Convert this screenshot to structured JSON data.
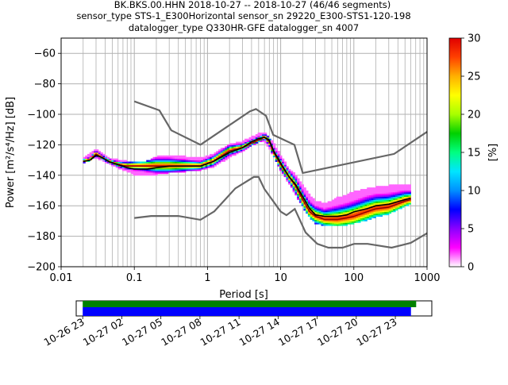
{
  "header": {
    "title_line1": "BK.BKS.00.HHN   2018-10-27 -- 2018-10-27  (46/46 segments)",
    "title_line2": "sensor_type STS-1_E300Horizontal sensor_sn 29220_E300-STS1-120-198",
    "title_line3": "datalogger_type Q330HR-GFE datalogger_sn 4007"
  },
  "colorbar": {
    "label": "[%]",
    "ticks": [
      "0",
      "5",
      "10",
      "15",
      "20",
      "25",
      "30"
    ],
    "range": [
      0,
      30
    ],
    "colormap": [
      "#ffffff",
      "#ff00ff",
      "#8a00ff",
      "#0000ff",
      "#0090ff",
      "#00e5ff",
      "#00ff80",
      "#00d000",
      "#a8ff00",
      "#ffff00",
      "#ffb000",
      "#ff4000",
      "#e00000"
    ]
  },
  "timeline": {
    "tick_labels": [
      "10-26 23",
      "10-27 02",
      "10-27 05",
      "10-27 08",
      "10-27 11",
      "10-27 14",
      "10-27 17",
      "10-27 20",
      "10-27 23"
    ],
    "data_color": "#008000",
    "segment_color": "#0000ff",
    "range_hours": [
      -1.5,
      25.8
    ],
    "data_span_hours": [
      -1,
      24.6
    ],
    "segment_span_hours": [
      -1,
      24.2
    ]
  },
  "chart_data": {
    "type": "heatmap",
    "xlabel": "Period [s]",
    "ylabel": "Power [m²/s⁴/Hz] [dB]",
    "x_scale": "log",
    "xlim": [
      0.01,
      1000
    ],
    "ylim": [
      -200,
      -50
    ],
    "x_tick_labels": [
      "0.01",
      "0.1",
      "1",
      "10",
      "100",
      "1000"
    ],
    "y_ticks": [
      -200,
      -180,
      -160,
      -140,
      -120,
      -100,
      -80,
      -60
    ],
    "grid": true,
    "noise_models": {
      "color": "#666666",
      "nhnm": {
        "x": [
          0.1,
          0.22,
          0.32,
          0.8,
          3.8,
          4.6,
          6.3,
          7.9,
          15.4,
          20,
          354.8,
          1000
        ],
        "y": [
          -91.5,
          -97.4,
          -110.5,
          -120,
          -98,
          -96.5,
          -101,
          -113.5,
          -120,
          -138.5,
          -126,
          -111.5
        ]
      },
      "nlnm": {
        "x": [
          0.1,
          0.17,
          0.4,
          0.8,
          1.24,
          2.4,
          4.3,
          5,
          6,
          10,
          12,
          15.6,
          21.9,
          31.6,
          45,
          70,
          101,
          154,
          328,
          600,
          1000
        ],
        "y": [
          -168,
          -166.7,
          -166.7,
          -169.2,
          -163.7,
          -148.6,
          -141.1,
          -141.1,
          -149,
          -163.8,
          -166.2,
          -162.1,
          -177.5,
          -185,
          -187.5,
          -187.5,
          -185,
          -185,
          -187.5,
          -184.4,
          -178
        ]
      }
    },
    "mean_line": {
      "color": "#000000",
      "x": [
        0.02,
        0.025,
        0.03,
        0.035,
        0.045,
        0.06,
        0.08,
        0.1,
        0.15,
        0.2,
        0.3,
        0.5,
        0.8,
        1.2,
        2,
        3,
        4,
        5,
        6,
        7,
        8,
        10,
        13,
        16,
        20,
        25,
        30,
        40,
        60,
        80,
        100,
        150,
        200,
        300,
        500,
        600
      ],
      "y": [
        -131,
        -130,
        -127,
        -128,
        -131,
        -133,
        -135,
        -136,
        -136,
        -135,
        -134,
        -134,
        -134,
        -131,
        -125,
        -122,
        -118,
        -116,
        -115,
        -117,
        -124,
        -132,
        -141,
        -146,
        -154,
        -162,
        -166,
        -167,
        -167,
        -166,
        -164,
        -162,
        -160,
        -159,
        -156,
        -155
      ]
    },
    "mode_line": {
      "color": "#8b0000",
      "x": [
        0.02,
        0.025,
        0.03,
        0.035,
        0.045,
        0.06,
        0.08,
        0.1,
        0.15,
        0.2,
        0.3,
        0.5,
        0.8,
        1.2,
        2,
        3,
        4,
        5,
        6,
        7,
        8,
        10,
        13,
        16,
        20,
        25,
        30,
        40,
        60,
        80,
        100,
        150,
        200,
        300,
        500,
        600
      ],
      "y": [
        -131,
        -130,
        -126,
        -128,
        -131,
        -133,
        -134,
        -134,
        -134,
        -134,
        -134,
        -134,
        -134,
        -131,
        -124,
        -122,
        -119,
        -117,
        -115,
        -118,
        -125,
        -133,
        -141,
        -147,
        -156,
        -164,
        -167,
        -169,
        -169,
        -168,
        -167,
        -164,
        -162,
        -161,
        -157,
        -156
      ]
    },
    "psd_cloud": {
      "x": [
        0.02,
        0.03,
        0.045,
        0.06,
        0.08,
        0.1,
        0.15,
        0.2,
        0.3,
        0.5,
        0.8,
        1.2,
        2,
        3,
        4,
        5,
        6,
        8,
        10,
        13,
        16,
        20,
        25,
        30,
        40,
        60,
        80,
        100,
        150,
        200,
        300,
        500,
        600
      ],
      "low": [
        -132,
        -128,
        -132,
        -135,
        -137,
        -139,
        -140,
        -139,
        -138,
        -137,
        -136,
        -134,
        -128,
        -124,
        -120,
        -118,
        -117,
        -127,
        -136,
        -145,
        -152,
        -160,
        -167,
        -171,
        -173,
        -173,
        -172,
        -171,
        -169,
        -167,
        -165,
        -160,
        -158
      ],
      "high": [
        -130,
        -124,
        -130,
        -131,
        -132,
        -133,
        -132,
        -129,
        -128,
        -129,
        -130,
        -127,
        -121,
        -119,
        -116,
        -114,
        -113,
        -120,
        -128,
        -137,
        -141,
        -148,
        -154,
        -158,
        -160,
        -156,
        -154,
        -152,
        -150,
        -149,
        -148,
        -147,
        -147
      ]
    }
  }
}
